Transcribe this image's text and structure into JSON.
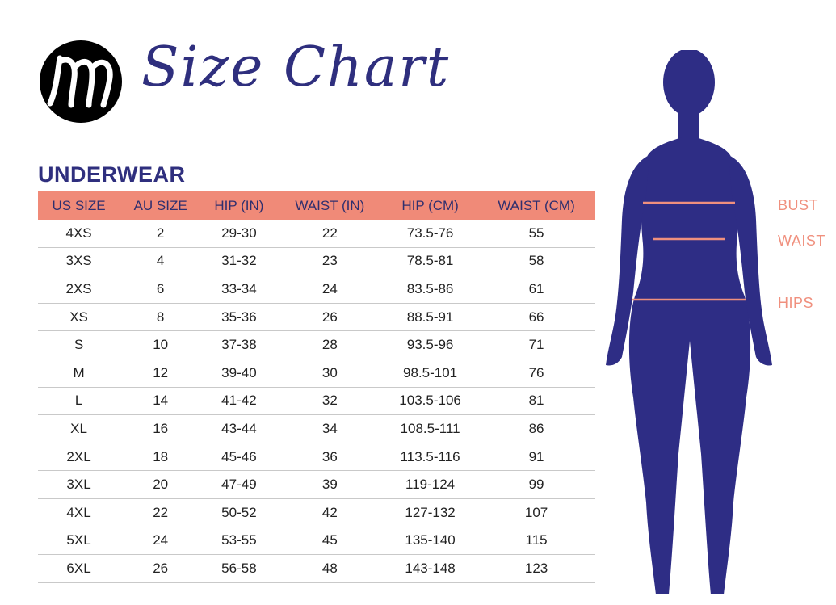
{
  "brand": {
    "logo_letter": "m"
  },
  "title": "Size Chart",
  "section_heading": "UNDERWEAR",
  "colors": {
    "navy": "#2f2f7e",
    "salmon": "#f08a78",
    "figure": "#2e2d85"
  },
  "table": {
    "headers": [
      "US SIZE",
      "AU SIZE",
      "HIP (IN)",
      "WAIST (IN)",
      "HIP  (CM)",
      "WAIST (CM)"
    ],
    "rows": [
      [
        "4XS",
        "2",
        "29-30",
        "22",
        "73.5-76",
        "55"
      ],
      [
        "3XS",
        "4",
        "31-32",
        "23",
        "78.5-81",
        "58"
      ],
      [
        "2XS",
        "6",
        "33-34",
        "24",
        "83.5-86",
        "61"
      ],
      [
        "XS",
        "8",
        "35-36",
        "26",
        "88.5-91",
        "66"
      ],
      [
        "S",
        "10",
        "37-38",
        "28",
        "93.5-96",
        "71"
      ],
      [
        "M",
        "12",
        "39-40",
        "30",
        "98.5-101",
        "76"
      ],
      [
        "L",
        "14",
        "41-42",
        "32",
        "103.5-106",
        "81"
      ],
      [
        "XL",
        "16",
        "43-44",
        "34",
        "108.5-111",
        "86"
      ],
      [
        "2XL",
        "18",
        "45-46",
        "36",
        "113.5-116",
        "91"
      ],
      [
        "3XL",
        "20",
        "47-49",
        "39",
        "119-124",
        "99"
      ],
      [
        "4XL",
        "22",
        "50-52",
        "42",
        "127-132",
        "107"
      ],
      [
        "5XL",
        "24",
        "53-55",
        "45",
        "135-140",
        "115"
      ],
      [
        "6XL",
        "26",
        "56-58",
        "48",
        "143-148",
        "123"
      ]
    ]
  },
  "measurements": {
    "bust": "BUST",
    "waist": "WAIST",
    "hips": "HIPS"
  }
}
